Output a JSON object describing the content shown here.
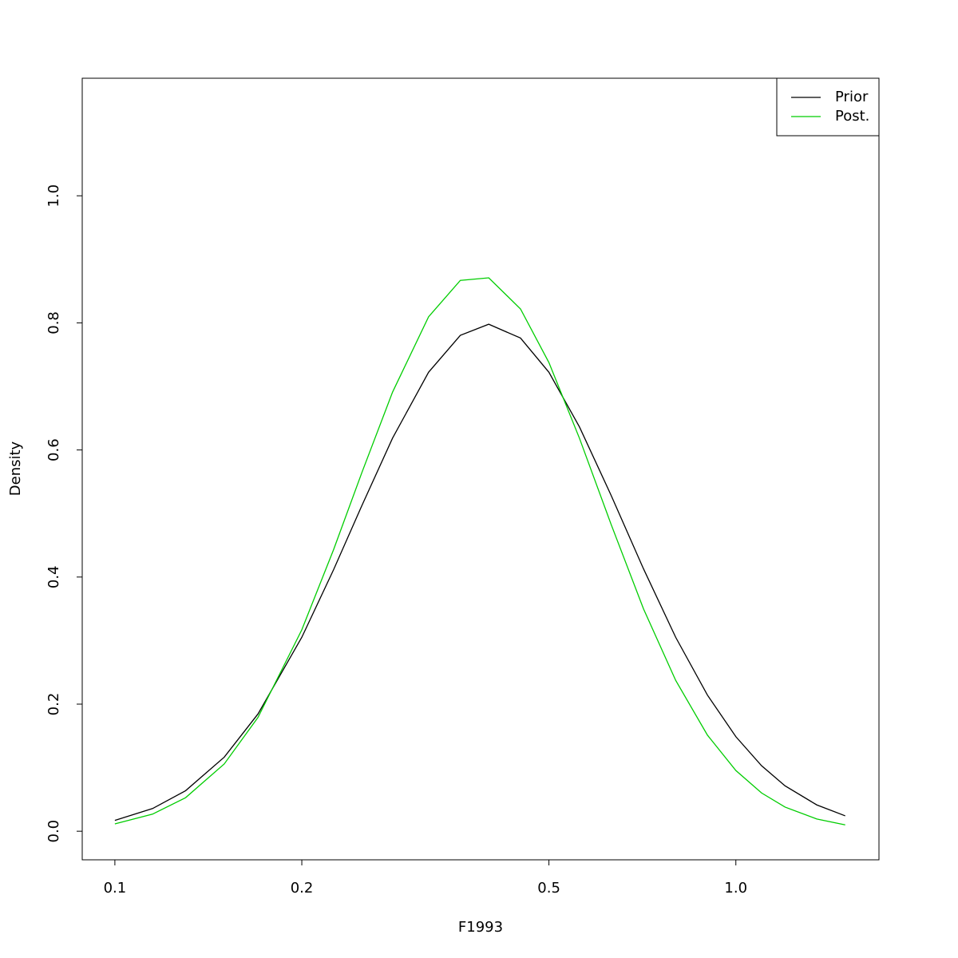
{
  "chart_data": {
    "type": "line",
    "xlabel": "F1993",
    "ylabel": "Density",
    "log_x": true,
    "x": [
      0.1,
      0.115,
      0.13,
      0.15,
      0.17,
      0.2,
      0.225,
      0.25,
      0.28,
      0.32,
      0.36,
      0.4,
      0.45,
      0.5,
      0.56,
      0.63,
      0.71,
      0.8,
      0.9,
      1.0,
      1.1,
      1.2,
      1.35,
      1.5
    ],
    "series": [
      {
        "name": "Prior",
        "color": "#000000",
        "values": [
          0.0171,
          0.0357,
          0.0638,
          0.1165,
          0.1845,
          0.3052,
          0.4115,
          0.5129,
          0.6186,
          0.7223,
          0.7804,
          0.7979,
          0.7761,
          0.7223,
          0.6362,
          0.5281,
          0.413,
          0.3052,
          0.2142,
          0.1488,
          0.1031,
          0.0714,
          0.0414,
          0.0242
        ]
      },
      {
        "name": "Post.",
        "color": "#00cd00",
        "values": [
          0.0115,
          0.0269,
          0.0528,
          0.1058,
          0.1791,
          0.317,
          0.4431,
          0.5649,
          0.691,
          0.8095,
          0.8669,
          0.8709,
          0.8219,
          0.7375,
          0.6183,
          0.4823,
          0.35,
          0.2374,
          0.1512,
          0.0955,
          0.0602,
          0.038,
          0.0192,
          0.0099
        ]
      }
    ],
    "xlim": [
      0.0886,
      1.7
    ],
    "xticks": [
      0.1,
      0.2,
      0.5,
      {
        "value": 1,
        "label": "1.0"
      }
    ],
    "ylim": [
      -0.045,
      1.185
    ],
    "yticks": [
      {
        "value": 0,
        "label": "0.0"
      },
      0.2,
      0.4,
      0.6,
      0.8,
      {
        "value": 1,
        "label": "1.0"
      }
    ],
    "legend": "topright"
  }
}
